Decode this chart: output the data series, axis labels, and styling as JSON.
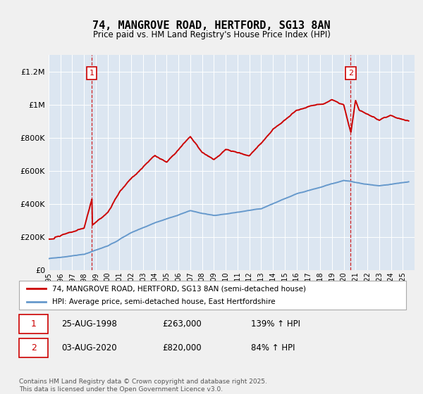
{
  "title": "74, MANGROVE ROAD, HERTFORD, SG13 8AN",
  "subtitle": "Price paid vs. HM Land Registry's House Price Index (HPI)",
  "legend_line1": "74, MANGROVE ROAD, HERTFORD, SG13 8AN (semi-detached house)",
  "legend_line2": "HPI: Average price, semi-detached house, East Hertfordshire",
  "footer": "Contains HM Land Registry data © Crown copyright and database right 2025.\nThis data is licensed under the Open Government Licence v3.0.",
  "sale1_date": "25-AUG-1998",
  "sale1_price": "£263,000",
  "sale1_hpi": "139% ↑ HPI",
  "sale2_date": "03-AUG-2020",
  "sale2_price": "£820,000",
  "sale2_hpi": "84% ↑ HPI",
  "red_color": "#cc0000",
  "blue_color": "#6699cc",
  "plot_bg": "#dce6f1",
  "ylim": [
    0,
    1300000
  ],
  "yticks": [
    0,
    200000,
    400000,
    600000,
    800000,
    1000000,
    1200000
  ],
  "ytick_labels": [
    "£0",
    "£200K",
    "£400K",
    "£600K",
    "£800K",
    "£1M",
    "£1.2M"
  ],
  "sale1_year": 1998.65,
  "sale1_value": 263000,
  "sale2_year": 2020.58,
  "sale2_value": 820000,
  "vline1_year": 1998.65,
  "vline2_year": 2020.58,
  "xlim": [
    1995,
    2026
  ]
}
